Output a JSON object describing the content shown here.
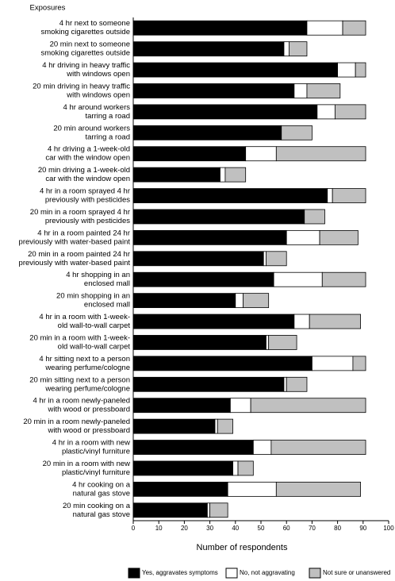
{
  "chart_data": {
    "type": "stacked-barh",
    "title": "Exposures",
    "x_label": "Number of respondents",
    "categories": [
      [
        "4 hr next to someone",
        "smoking cigarettes outside"
      ],
      [
        "20 min next to someone",
        "smoking cigarettes outside"
      ],
      [
        "4 hr driving in heavy traffic",
        "with windows open"
      ],
      [
        "20 min driving in heavy traffic",
        "with windows open"
      ],
      [
        "4 hr around workers",
        "tarring a road"
      ],
      [
        "20 min around workers",
        "tarring a road"
      ],
      [
        "4 hr driving a 1-week-old",
        "car with the window open"
      ],
      [
        "20 min driving a 1-week-old",
        "car with the window open"
      ],
      [
        "4 hr in a room sprayed 4 hr",
        "previously with pesticides"
      ],
      [
        "20 min in a room sprayed 4 hr",
        "previously with pesticides"
      ],
      [
        "4 hr in a room painted 24 hr",
        "previously with water-based paint"
      ],
      [
        "20 min in a room painted 24 hr",
        "previously with water-based paint"
      ],
      [
        "4 hr shopping in an",
        "enclosed mall"
      ],
      [
        "20 min shopping in an",
        "enclosed mall"
      ],
      [
        "4 hr in a room with 1-week-",
        "old wall-to-wall carpet"
      ],
      [
        "20 min in a room with 1-week-",
        "old wall-to-wall carpet"
      ],
      [
        "4 hr sitting next to a person",
        "wearing perfume/cologne"
      ],
      [
        "20 min sitting next to a person",
        "wearing perfume/cologne"
      ],
      [
        "4 hr in a room newly-paneled",
        "with wood or pressboard"
      ],
      [
        "20 min in a room newly-paneled",
        "with wood or pressboard"
      ],
      [
        "4 hr in a room with new",
        "plastic/vinyl furniture"
      ],
      [
        "20 min in a room with new",
        "plastic/vinyl furniture"
      ],
      [
        "4 hr cooking on a",
        "natural gas stove"
      ],
      [
        "20 min cooking on a",
        "natural gas stove"
      ]
    ],
    "series": [
      {
        "name": "Yes, aggravates symptoms",
        "color": "#000000",
        "values": [
          68,
          59,
          80,
          63,
          72,
          58,
          44,
          34,
          76,
          67,
          60,
          51,
          55,
          40,
          63,
          52,
          70,
          59,
          38,
          32,
          47,
          39,
          37,
          29
        ]
      },
      {
        "name": "No, not aggravating",
        "color": "#ffffff",
        "values": [
          14,
          2,
          7,
          5,
          7,
          0,
          12,
          2,
          2,
          0,
          13,
          1,
          19,
          3,
          6,
          1,
          16,
          1,
          8,
          1,
          7,
          2,
          19,
          1
        ]
      },
      {
        "name": "Not sure or unanswered",
        "color": "#c0c0c0",
        "values": [
          9,
          7,
          4,
          13,
          12,
          12,
          35,
          8,
          13,
          8,
          15,
          8,
          17,
          10,
          20,
          11,
          5,
          8,
          45,
          6,
          37,
          6,
          33,
          7
        ]
      }
    ],
    "xlim": [
      0,
      100
    ],
    "xticks": [
      0,
      10,
      20,
      30,
      40,
      50,
      60,
      70,
      80,
      90,
      100
    ]
  }
}
